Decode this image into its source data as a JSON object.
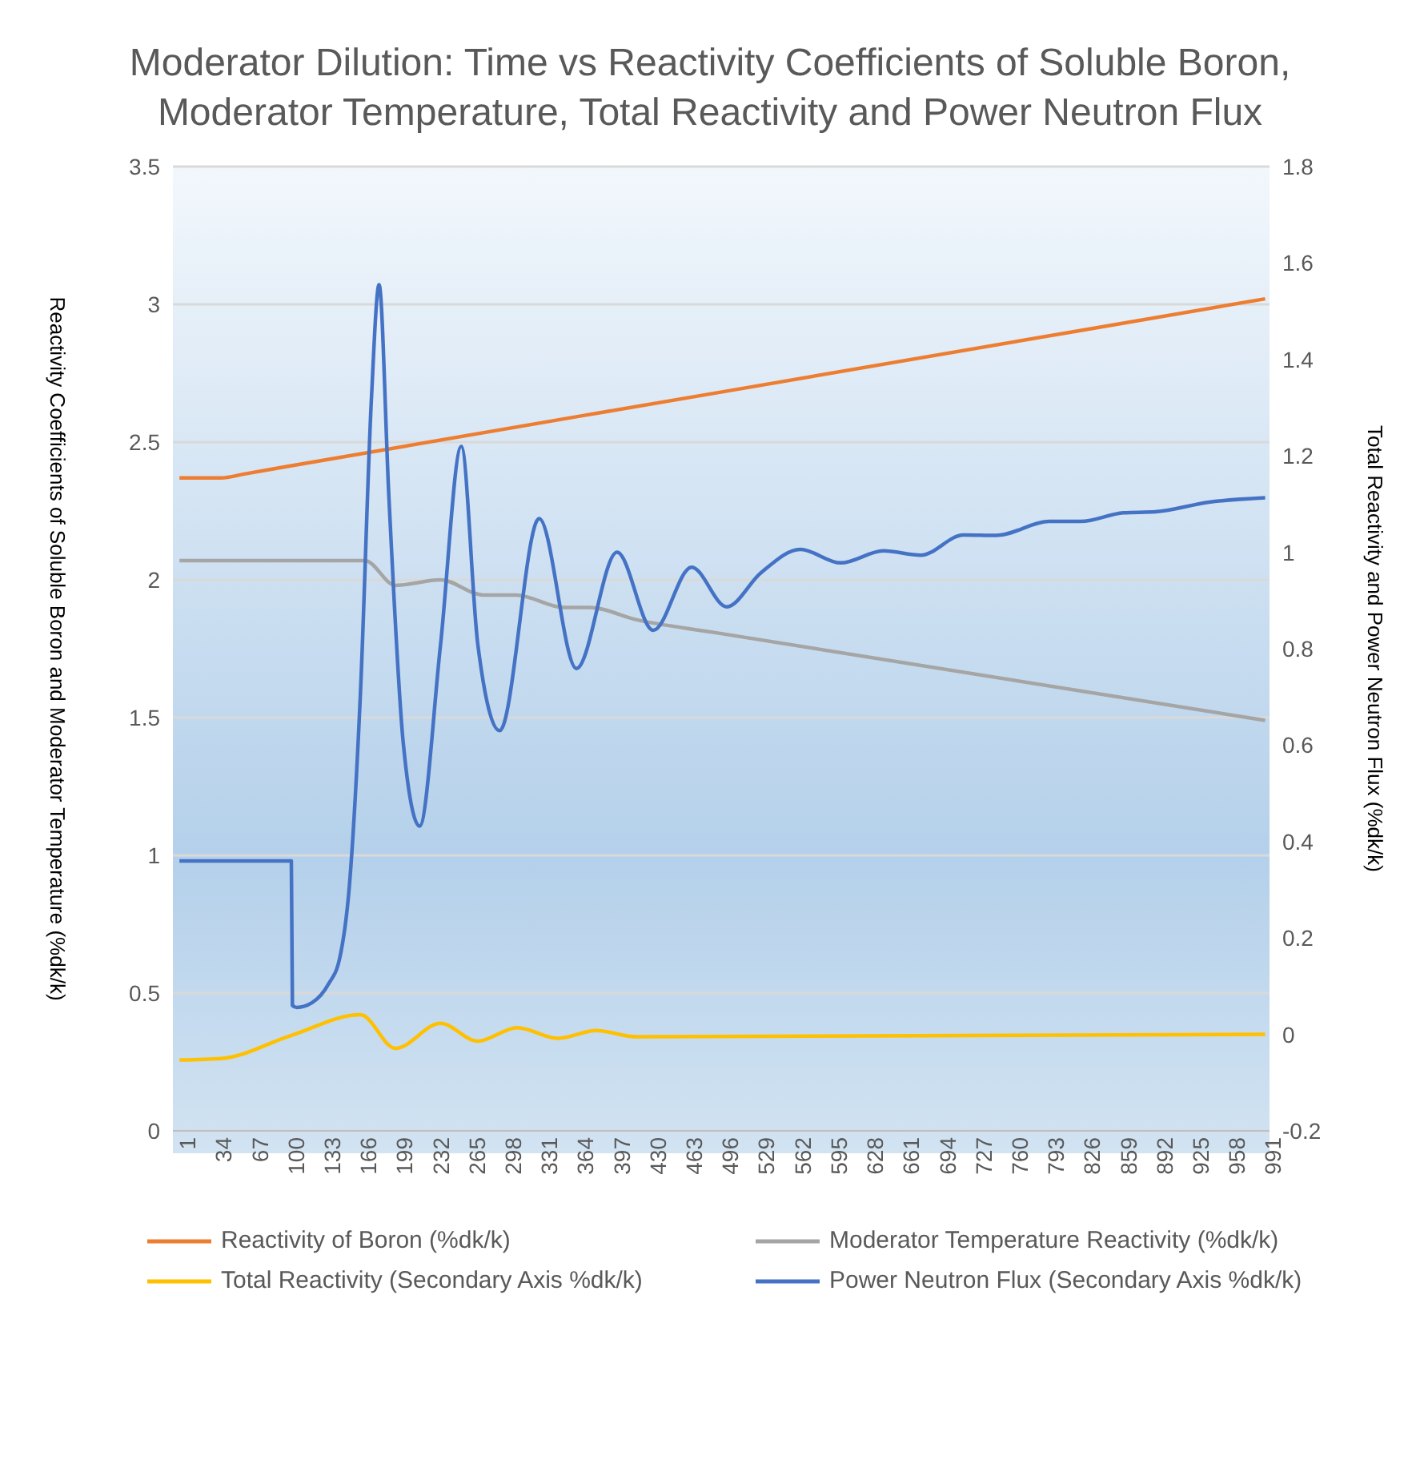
{
  "chart_data": {
    "type": "line",
    "title": "Moderator Dilution: Time vs Reactivity Coefficients of Soluble Boron, Moderator Temperature, Total Reactivity and Power Neutron Flux",
    "ylabel": "Reactivity Coefficients of Soluble Boron and Moderator Temperature (%dk/k)",
    "y2label": "Total Reactivity and Power Neutron Flux (%dk/k)",
    "xlim": [
      -5,
      995
    ],
    "xticks": [
      1,
      34,
      67,
      100,
      133,
      166,
      199,
      232,
      265,
      298,
      331,
      364,
      397,
      430,
      463,
      496,
      529,
      562,
      595,
      628,
      661,
      694,
      727,
      760,
      793,
      826,
      859,
      892,
      925,
      958,
      991
    ],
    "ylim": [
      0,
      3.5
    ],
    "yticks": [
      0,
      0.5,
      1,
      1.5,
      2,
      2.5,
      3,
      3.5
    ],
    "y2lim": [
      -0.2,
      1.8
    ],
    "y2ticks": [
      -0.2,
      0,
      0.2,
      0.4,
      0.6,
      0.8,
      1,
      1.2,
      1.4,
      1.6,
      1.8
    ],
    "grid": "y",
    "legend": "bottom",
    "marker": "none",
    "series": [
      {
        "name": "Reactivity of Boron (%dk/k)",
        "color": "#ed7d31",
        "x": [
          1,
          39,
          60,
          100,
          500,
          991
        ],
        "values": [
          2.37,
          2.37,
          2.384,
          2.412,
          2.685,
          3.02
        ]
      },
      {
        "name": "Moderator Temperature Reactivity (%dk/k)",
        "color": "#a5a5a5",
        "x": [
          1,
          170,
          198,
          239,
          278,
          308,
          351,
          375,
          418,
          487,
          991
        ],
        "values": [
          2.07,
          2.07,
          1.98,
          2.0,
          1.945,
          1.945,
          1.9,
          1.9,
          1.855,
          1.81,
          1.49
        ]
      },
      {
        "name": "Total Reactivity (Secondary Axis %dk/k)",
        "color": "#ffc000",
        "axis": "y2",
        "x": [
          1,
          39,
          103,
          166,
          198,
          239,
          273,
          309,
          346,
          381,
          418,
          991
        ],
        "values": [
          -0.053,
          -0.05,
          -0.002,
          0.041,
          -0.029,
          0.023,
          -0.014,
          0.014,
          -0.008,
          0.008,
          -0.005,
          0
        ]
      },
      {
        "name": "Power Neutron Flux (Secondary Axis %dk/k)",
        "color": "#4472c4",
        "axis": "y2",
        "x": [
          1,
          103,
          104,
          108,
          122,
          137,
          147,
          156,
          166,
          176,
          183,
          192,
          205,
          220,
          239,
          258,
          273,
          293,
          329,
          363,
          400,
          433,
          468,
          500,
          531,
          567,
          604,
          643,
          677,
          716,
          746,
          794,
          823,
          862,
          891,
          940,
          991
        ],
        "values": [
          0.36,
          0.36,
          0.06,
          0.056,
          0.066,
          0.105,
          0.157,
          0.31,
          0.707,
          1.317,
          1.555,
          1.113,
          0.606,
          0.432,
          0.807,
          1.22,
          0.81,
          0.63,
          1.07,
          0.759,
          1.0,
          0.838,
          0.969,
          0.887,
          0.957,
          1.006,
          0.978,
          1.003,
          0.994,
          1.036,
          1.035,
          1.064,
          1.064,
          1.082,
          1.084,
          1.104,
          1.113
        ]
      }
    ]
  }
}
